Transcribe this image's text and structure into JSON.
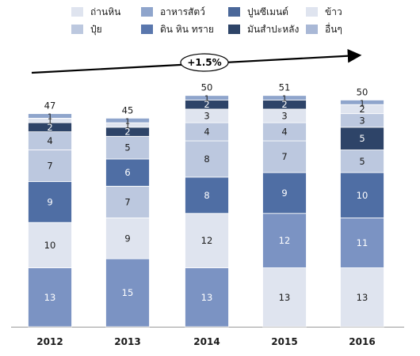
{
  "chart_data": {
    "type": "bar",
    "stacked": true,
    "categories": [
      "2012",
      "2013",
      "2014",
      "2015",
      "2016"
    ],
    "totals": [
      "47",
      "45",
      "50",
      "51",
      "50"
    ],
    "growth_label": "+1.5%",
    "series": [
      {
        "name": "ถ่านหิน",
        "color": "#dfe4ef",
        "label_color": "#1a1a1a",
        "values": [
          13,
          15,
          13,
          13,
          13
        ],
        "fill_from": [],
        "point_colors": [
          "#7b93c3",
          "#7b93c3",
          "#7b93c3",
          "#dfe4ef",
          "#dfe4ef"
        ],
        "point_label_colors": [
          "#ffffff",
          "#ffffff",
          "#ffffff",
          "#1a1a1a",
          "#1a1a1a"
        ]
      },
      {
        "name": "ปุ๋ย",
        "color": "#bcc8df",
        "label_color": "#1a1a1a",
        "values": [
          10,
          9,
          12,
          12,
          11
        ],
        "point_colors": [
          "#dfe4ef",
          "#dfe4ef",
          "#dfe4ef",
          "#7b93c3",
          "#7b93c3"
        ],
        "point_label_colors": [
          "#1a1a1a",
          "#1a1a1a",
          "#1a1a1a",
          "#ffffff",
          "#ffffff"
        ]
      },
      {
        "name": "อาหารสัตว์",
        "color": "#8fa5cc",
        "label_color": "#ffffff",
        "values": [
          9,
          7,
          8,
          9,
          10
        ],
        "point_colors": [
          "#4f6ea4",
          "#bcc8df",
          "#4f6ea4",
          "#4f6ea4",
          "#4f6ea4"
        ],
        "point_label_colors": [
          "#ffffff",
          "#1a1a1a",
          "#ffffff",
          "#ffffff",
          "#ffffff"
        ]
      },
      {
        "name": "ดิน หิน ทราย",
        "color": "#5a77ad",
        "label_color": "#ffffff",
        "values": [
          7,
          6,
          8,
          7,
          5
        ],
        "point_colors": [
          "#bcc8df",
          "#4f6ea4",
          "#bcc8df",
          "#bcc8df",
          "#bcc8df"
        ],
        "point_label_colors": [
          "#1a1a1a",
          "#ffffff",
          "#1a1a1a",
          "#1a1a1a",
          "#1a1a1a"
        ]
      },
      {
        "name": "ปูนซีเมนต์",
        "color": "#4a6799",
        "label_color": "#ffffff",
        "values": [
          4,
          5,
          4,
          4,
          5
        ],
        "point_colors": [
          "#bcc8df",
          "#bcc8df",
          "#bcc8df",
          "#bcc8df",
          "#2e4468"
        ],
        "point_label_colors": [
          "#1a1a1a",
          "#1a1a1a",
          "#1a1a1a",
          "#1a1a1a",
          "#ffffff"
        ]
      },
      {
        "name": "มันสำปะหลัง",
        "color": "#2e4468",
        "label_color": "#ffffff",
        "values": [
          2,
          2,
          3,
          3,
          3
        ],
        "point_colors": [
          "#2e4468",
          "#2e4468",
          "#dfe4ef",
          "#dfe4ef",
          "#bcc8df"
        ],
        "point_label_colors": [
          "#ffffff",
          "#ffffff",
          "#1a1a1a",
          "#1a1a1a",
          "#1a1a1a"
        ]
      },
      {
        "name": "ข้าว",
        "color": "#dfe4ef",
        "label_color": "#1a1a1a",
        "values": [
          1,
          1,
          2,
          2,
          2
        ],
        "point_colors": [
          "#dfe4ef",
          "#dfe4ef",
          "#2e4468",
          "#2e4468",
          "#dfe4ef"
        ],
        "point_label_colors": [
          "#1a1a1a",
          "#1a1a1a",
          "#ffffff",
          "#ffffff",
          "#1a1a1a"
        ]
      },
      {
        "name": "อื่นๆ",
        "color": "#a9b8d6",
        "label_color": "#1a1a1a",
        "values": [
          1,
          1,
          1,
          1,
          1
        ],
        "point_colors": [
          "#8fa5cc",
          "#8fa5cc",
          "#8fa5cc",
          "#8fa5cc",
          "#8fa5cc"
        ],
        "point_label_colors": [
          "#1a1a1a",
          "#1a1a1a",
          "#1a1a1a",
          "#1a1a1a",
          "#1a1a1a"
        ]
      }
    ],
    "legend_order": [
      0,
      2,
      4,
      6,
      1,
      3,
      5,
      7
    ],
    "legend_placement": "top",
    "ylim": [
      0,
      52
    ],
    "grid": false,
    "title": "",
    "xlabel": "",
    "ylabel": ""
  }
}
